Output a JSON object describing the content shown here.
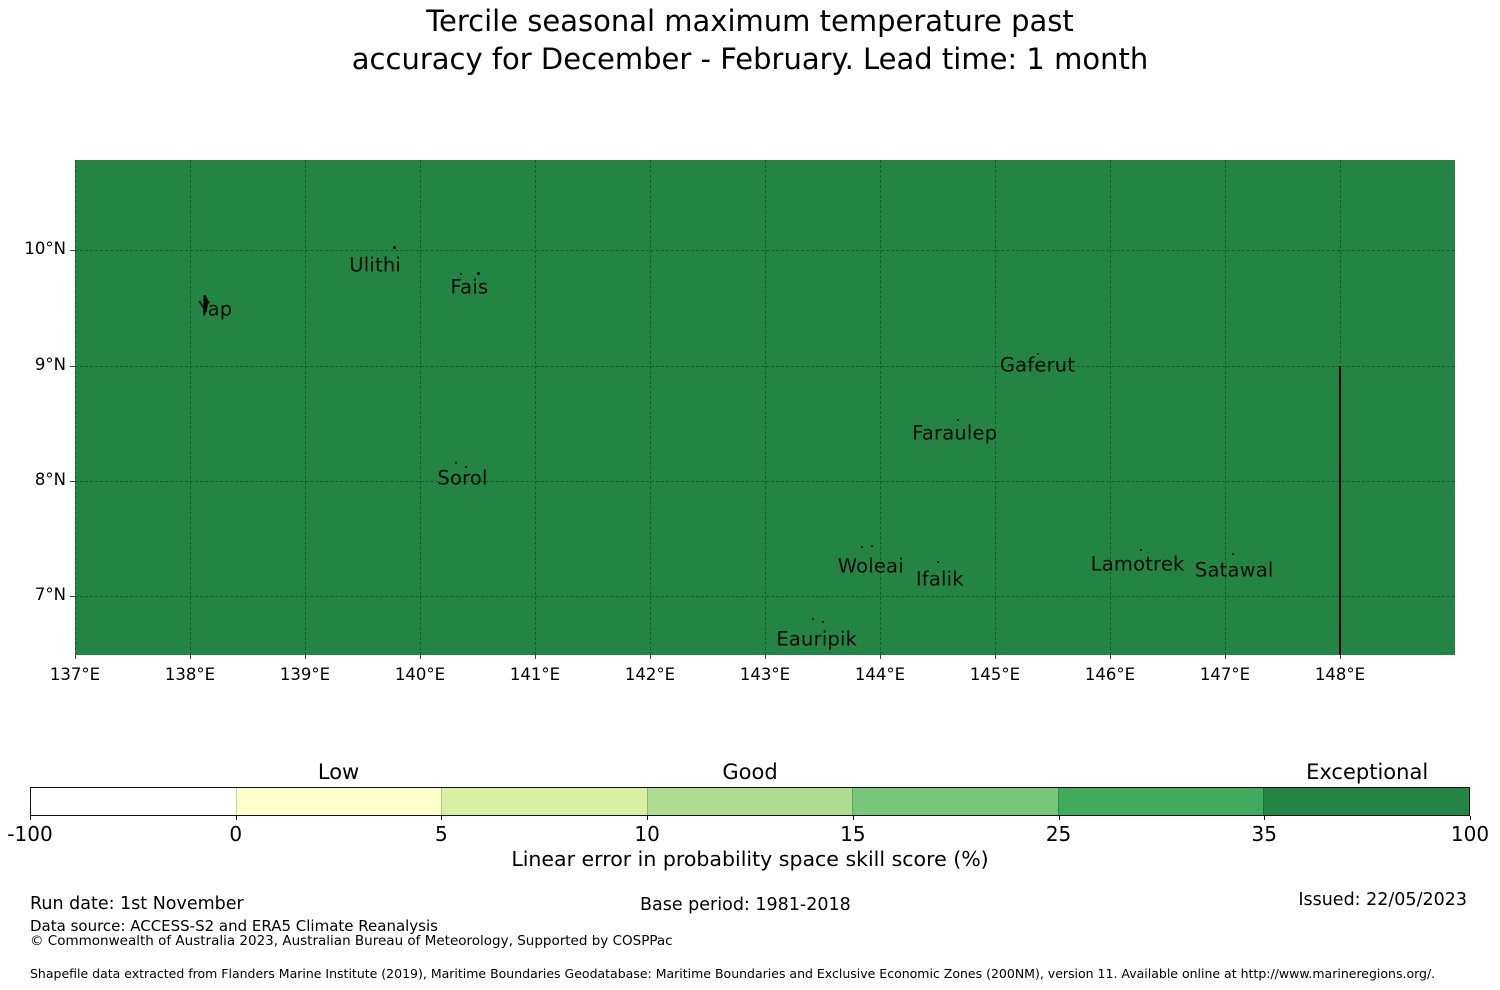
{
  "title": {
    "line1": "Tercile seasonal maximum temperature past",
    "line2": "accuracy for December - February. Lead time: 1 month"
  },
  "chart_data": {
    "type": "heatmap",
    "subtype": "choropleth-map",
    "description": "EEZ region map uniformly filled with the 35-100 (Exceptional) skill bin colour",
    "map_fill_color": "#238443",
    "gridline_color": "rgba(0,0,0,0.32)",
    "axes": {
      "lon_min": 137,
      "lon_max": 149,
      "lat_top": 10.785,
      "lat_bottom": 6.49,
      "x_tick_lons": [
        137,
        138,
        139,
        140,
        141,
        142,
        143,
        144,
        145,
        146,
        147,
        148
      ],
      "x_tick_labels": [
        "137°E",
        "138°E",
        "139°E",
        "140°E",
        "141°E",
        "142°E",
        "143°E",
        "144°E",
        "145°E",
        "146°E",
        "147°E",
        "148°E"
      ],
      "y_tick_lats": [
        10,
        9,
        8,
        7
      ],
      "y_tick_labels": [
        "10°N",
        "9°N",
        "8°N",
        "7°N"
      ]
    },
    "islands": [
      {
        "name": "Yap",
        "label_lon": 138.22,
        "label_lat": 9.49,
        "shape": true,
        "markers": [
          {
            "lon": 138.13,
            "lat": 9.53,
            "size": 16
          }
        ]
      },
      {
        "name": "Ulithi",
        "label_lon": 139.61,
        "label_lat": 9.87,
        "markers": [
          {
            "lon": 139.78,
            "lat": 10.03,
            "size": 3
          }
        ]
      },
      {
        "name": "Fais",
        "label_lon": 140.43,
        "label_lat": 9.68,
        "markers": [
          {
            "lon": 140.36,
            "lat": 9.8,
            "size": 2
          },
          {
            "lon": 140.51,
            "lat": 9.8,
            "size": 3
          }
        ]
      },
      {
        "name": "Sorol",
        "label_lon": 140.37,
        "label_lat": 8.03,
        "markers": [
          {
            "lon": 140.31,
            "lat": 8.16,
            "size": 2
          },
          {
            "lon": 140.4,
            "lat": 8.12,
            "size": 2
          }
        ]
      },
      {
        "name": "Gaferut",
        "label_lon": 145.37,
        "label_lat": 9.01,
        "markers": [
          {
            "lon": 145.37,
            "lat": 9.1,
            "size": 2
          }
        ]
      },
      {
        "name": "Faraulep",
        "label_lon": 144.65,
        "label_lat": 8.42,
        "markers": [
          {
            "lon": 144.68,
            "lat": 8.53,
            "size": 2
          }
        ]
      },
      {
        "name": "Woleai",
        "label_lon": 143.92,
        "label_lat": 7.26,
        "markers": [
          {
            "lon": 143.84,
            "lat": 7.43,
            "size": 2
          },
          {
            "lon": 143.93,
            "lat": 7.44,
            "size": 2
          }
        ]
      },
      {
        "name": "Ifalik",
        "label_lon": 144.52,
        "label_lat": 7.15,
        "markers": [
          {
            "lon": 144.5,
            "lat": 7.3,
            "size": 2
          }
        ]
      },
      {
        "name": "Lamotrek",
        "label_lon": 146.24,
        "label_lat": 7.28,
        "markers": [
          {
            "lon": 146.27,
            "lat": 7.4,
            "size": 2
          }
        ]
      },
      {
        "name": "Satawal",
        "label_lon": 147.08,
        "label_lat": 7.23,
        "markers": [
          {
            "lon": 147.07,
            "lat": 7.37,
            "size": 2
          }
        ]
      },
      {
        "name": "Eauripik",
        "label_lon": 143.45,
        "label_lat": 6.63,
        "markers": [
          {
            "lon": 143.42,
            "lat": 6.8,
            "size": 2
          },
          {
            "lon": 143.5,
            "lat": 6.78,
            "size": 2
          }
        ]
      }
    ],
    "boundary_line": {
      "lon": 148.0,
      "lat_from": 9.0,
      "lat_to": 6.49,
      "color": "#000000"
    }
  },
  "colorbar": {
    "tick_labels": [
      "-100",
      "0",
      "5",
      "10",
      "15",
      "25",
      "35",
      "100"
    ],
    "segment_colors": [
      "#ffffff",
      "#ffffcc",
      "#d9f0a3",
      "#addd8e",
      "#78c679",
      "#41ab5d",
      "#238443"
    ],
    "zone_labels": [
      {
        "text": "Low",
        "bin_index": 1
      },
      {
        "text": "Good",
        "bin_index": 3
      },
      {
        "text": "Exceptional",
        "bin_index": 6
      }
    ],
    "title": "Linear error in probability space skill score (%)"
  },
  "footer": {
    "run_date": "Run date: 1st November",
    "base_period": "Base period: 1981-2018",
    "issued": "Issued: 22/05/2023",
    "data_source": "Data source: ACCESS-S2 and ERA5 Climate Reanalysis",
    "copyright": "© Commonwealth of Australia 2023, Australian Bureau of Meteorology, Supported by COSPPac",
    "shapefile_note": "Shapefile data extracted from Flanders Marine Institute (2019), Maritime Boundaries Geodatabase: Maritime Boundaries and Exclusive Economic Zones (200NM), version 11. Available online at http://www.marineregions.org/."
  }
}
